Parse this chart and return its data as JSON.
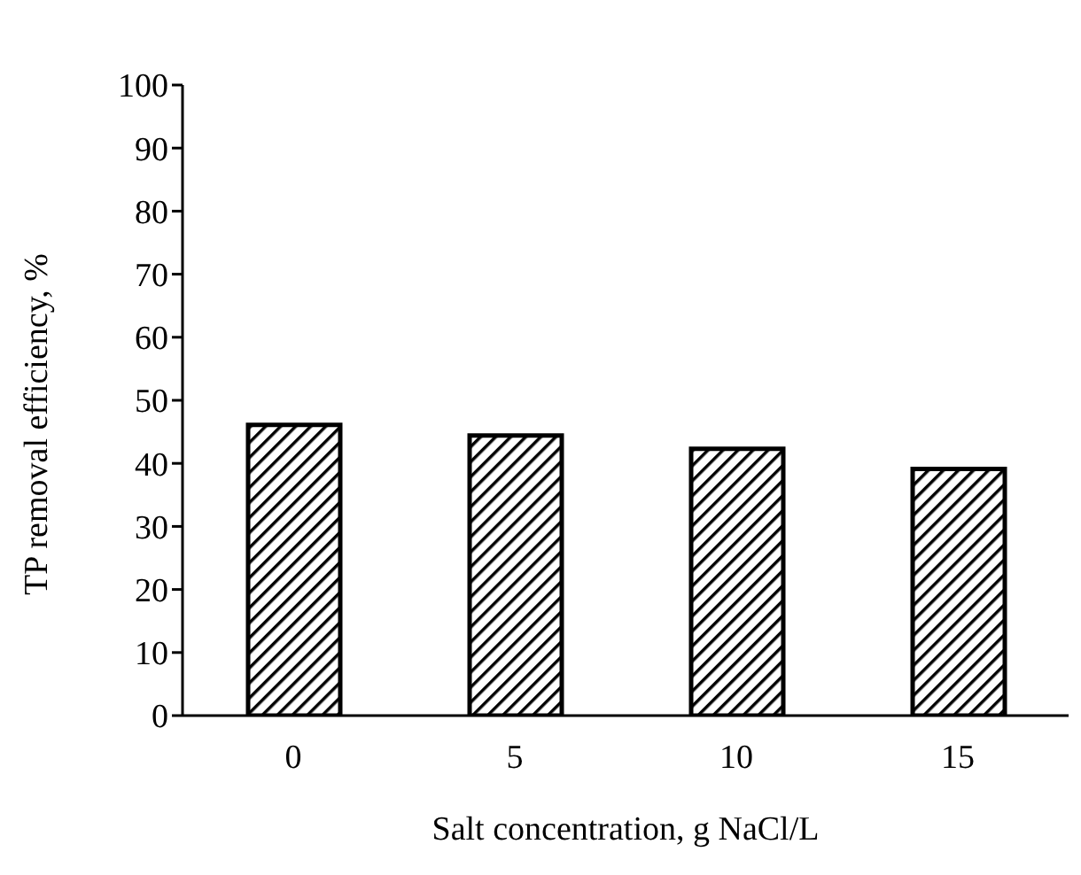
{
  "chart_data": {
    "type": "bar",
    "xlabel": "Salt concentration, g NaCl/L",
    "ylabel": "TP removal efficiency, %",
    "categories": [
      "0",
      "5",
      "10",
      "15"
    ],
    "values": [
      46.1,
      44.4,
      42.3,
      39.1
    ],
    "color": "#000000",
    "ylim": [
      0,
      100
    ],
    "yticks": [
      0,
      10,
      20,
      30,
      40,
      50,
      60,
      70,
      80,
      90,
      100
    ],
    "grid": false,
    "legend": false
  }
}
